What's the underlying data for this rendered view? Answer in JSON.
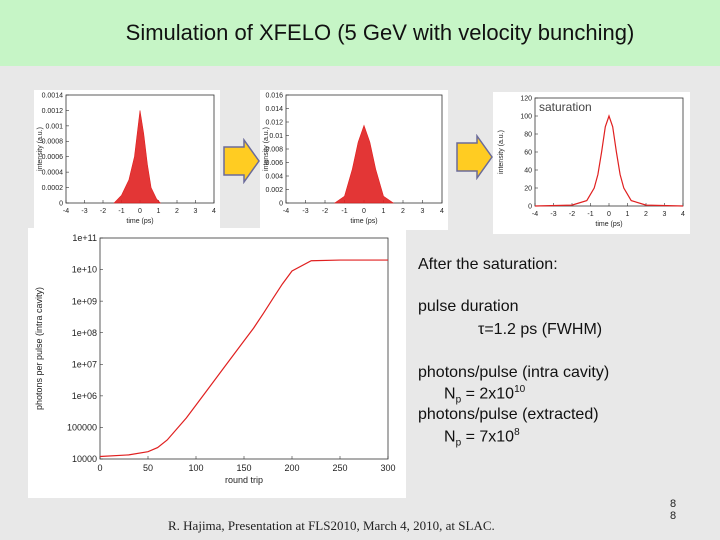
{
  "slide": {
    "title": "Simulation of XFELO (5 GeV with velocity bunching)",
    "footer": "R. Hajima, Presentation at FLS2010, March 4, 2010, at SLAC.",
    "page_number_top": "8",
    "page_number_bottom": "8"
  },
  "notes": {
    "heading": "After the saturation:",
    "pulse_label": "pulse duration",
    "pulse_value": "τ=1.2 ps (FWHM)",
    "photons_intra_label": "photons/pulse (intra cavity)",
    "np_symbol": "N",
    "np_sub": "p",
    "np_intra_value": "= 2x10",
    "np_intra_exp": "10",
    "photons_extracted_label": "photons/pulse (extracted)",
    "np_extracted_value": "= 7x10",
    "np_extracted_exp": "8"
  },
  "colors": {
    "header_bg": "#c6f5c6",
    "curve": "#e02020",
    "arrow_fill": "#ffcc22"
  },
  "chart_data": [
    {
      "type": "area",
      "title": "",
      "xlabel": "time (ps)",
      "ylabel": "intensity (a.u.)",
      "xlim": [
        -4,
        4
      ],
      "ylim": [
        0,
        0.0014
      ],
      "x_ticks": [
        "-4",
        "-3",
        "-2",
        "-1",
        "0",
        "1",
        "2",
        "3",
        "4"
      ],
      "y_ticks": [
        "0",
        "0.0002",
        "0.0004",
        "0.0006",
        "0.0008",
        "0.001",
        "0.0012",
        "0.0014"
      ],
      "x": [
        -1.4,
        -1.0,
        -0.6,
        -0.3,
        0.0,
        0.2,
        0.4,
        0.6,
        0.9,
        1.1
      ],
      "y": [
        0,
        0.0001,
        0.0003,
        0.0006,
        0.0012,
        0.0009,
        0.0005,
        0.0002,
        5e-05,
        0
      ]
    },
    {
      "type": "area",
      "title": "",
      "xlabel": "time (ps)",
      "ylabel": "intensity (a.u.)",
      "xlim": [
        -4,
        4
      ],
      "ylim": [
        0,
        0.016
      ],
      "x_ticks": [
        "-4",
        "-3",
        "-2",
        "-1",
        "0",
        "1",
        "2",
        "3",
        "4"
      ],
      "y_ticks": [
        "0",
        "0.002",
        "0.004",
        "0.006",
        "0.008",
        "0.01",
        "0.012",
        "0.014",
        "0.016"
      ],
      "x": [
        -1.5,
        -1.0,
        -0.6,
        -0.3,
        0.0,
        0.3,
        0.6,
        1.0,
        1.5
      ],
      "y": [
        0,
        0.001,
        0.005,
        0.009,
        0.0115,
        0.009,
        0.005,
        0.001,
        0
      ]
    },
    {
      "type": "line",
      "title": "saturation",
      "xlabel": "time (ps)",
      "ylabel": "intensity (a.u.)",
      "xlim": [
        -4,
        4
      ],
      "ylim": [
        0,
        120
      ],
      "x_ticks": [
        "-4",
        "-3",
        "-2",
        "-1",
        "0",
        "1",
        "2",
        "3",
        "4"
      ],
      "y_ticks": [
        "0",
        "20",
        "40",
        "60",
        "80",
        "100",
        "120"
      ],
      "x": [
        -4,
        -2,
        -1.2,
        -0.8,
        -0.6,
        -0.4,
        -0.2,
        0,
        0.2,
        0.4,
        0.6,
        0.8,
        1.2,
        2,
        4
      ],
      "y": [
        0,
        1,
        6,
        20,
        35,
        60,
        88,
        100,
        88,
        60,
        35,
        20,
        6,
        1,
        0
      ]
    },
    {
      "type": "line",
      "title": "",
      "scale": "log",
      "xlabel": "round trip",
      "ylabel": "photons per pulse (intra cavity)",
      "xlim": [
        0,
        300
      ],
      "ylim": [
        10000,
        100000000000
      ],
      "x_ticks": [
        "0",
        "50",
        "100",
        "150",
        "200",
        "250",
        "300"
      ],
      "y_ticks": [
        "10000",
        "100000",
        "1e+06",
        "1e+07",
        "1e+08",
        "1e+09",
        "1e+10",
        "1e+11"
      ],
      "x": [
        0,
        30,
        50,
        60,
        70,
        90,
        110,
        130,
        150,
        160,
        170,
        180,
        190,
        200,
        220,
        250,
        300
      ],
      "y": [
        12000,
        13500,
        17000,
        23000,
        40000,
        200000,
        1300000,
        8500000,
        55000000,
        140000000,
        400000000,
        1200000000,
        3500000000,
        9000000000,
        19000000000,
        20000000000,
        20000000000
      ]
    }
  ]
}
